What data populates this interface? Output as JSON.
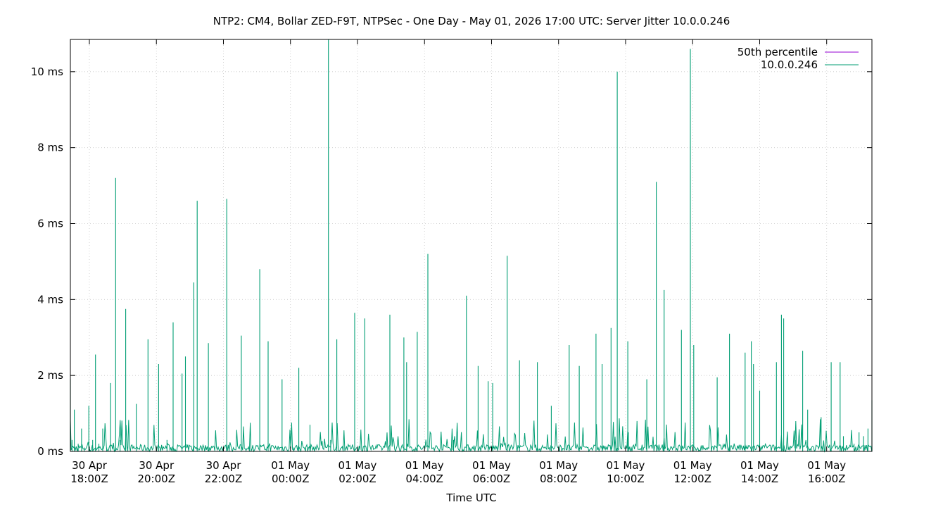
{
  "chart_data": {
    "type": "line",
    "title": "NTP2: CM4, Bollar ZED-F9T, NTPSec - One Day - May 01, 2026 17:00 UTC: Server Jitter 10.0.0.246",
    "xlabel": "Time UTC",
    "ylabel": "",
    "y_unit": "ms",
    "ylim": [
      0,
      10.85
    ],
    "xlim": [
      "2026-04-30T17:26Z",
      "2026-05-01T17:21Z"
    ],
    "yticks": [
      {
        "value": 0,
        "label": "0 ms"
      },
      {
        "value": 2,
        "label": "2 ms"
      },
      {
        "value": 4,
        "label": "4 ms"
      },
      {
        "value": 6,
        "label": "6 ms"
      },
      {
        "value": 8,
        "label": "8 ms"
      },
      {
        "value": 10,
        "label": "10 ms"
      }
    ],
    "xticks": [
      {
        "time": "2026-04-30T18:00Z",
        "line1": "30 Apr",
        "line2": "18:00Z"
      },
      {
        "time": "2026-04-30T20:00Z",
        "line1": "30 Apr",
        "line2": "20:00Z"
      },
      {
        "time": "2026-04-30T22:00Z",
        "line1": "30 Apr",
        "line2": "22:00Z"
      },
      {
        "time": "2026-05-01T00:00Z",
        "line1": "01 May",
        "line2": "00:00Z"
      },
      {
        "time": "2026-05-01T02:00Z",
        "line1": "01 May",
        "line2": "02:00Z"
      },
      {
        "time": "2026-05-01T04:00Z",
        "line1": "01 May",
        "line2": "04:00Z"
      },
      {
        "time": "2026-05-01T06:00Z",
        "line1": "01 May",
        "line2": "06:00Z"
      },
      {
        "time": "2026-05-01T08:00Z",
        "line1": "01 May",
        "line2": "08:00Z"
      },
      {
        "time": "2026-05-01T10:00Z",
        "line1": "01 May",
        "line2": "10:00Z"
      },
      {
        "time": "2026-05-01T12:00Z",
        "line1": "01 May",
        "line2": "12:00Z"
      },
      {
        "time": "2026-05-01T14:00Z",
        "line1": "01 May",
        "line2": "14:00Z"
      },
      {
        "time": "2026-05-01T16:00Z",
        "line1": "01 May",
        "line2": "16:00Z"
      }
    ],
    "grid": true,
    "legend_position": "top-right",
    "series": [
      {
        "name": "50th percentile",
        "color": "#9400d3",
        "values": [
          0.0
        ]
      },
      {
        "name": "10.0.0.246",
        "color": "#009e73",
        "x": [
          "2026-04-30T17:26Z",
          "2026-04-30T17:29Z",
          "2026-04-30T17:33Z",
          "2026-04-30T17:40Z",
          "2026-04-30T17:46Z",
          "2026-04-30T17:51Z",
          "2026-04-30T17:59Z",
          "2026-04-30T18:06Z",
          "2026-04-30T18:11Z",
          "2026-04-30T18:17Z",
          "2026-04-30T18:24Z",
          "2026-04-30T18:31Z",
          "2026-04-30T18:38Z",
          "2026-04-30T18:47Z",
          "2026-04-30T18:55Z",
          "2026-04-30T19:05Z",
          "2026-04-30T19:24Z",
          "2026-04-30T19:45Z",
          "2026-04-30T20:04Z",
          "2026-04-30T20:19Z",
          "2026-04-30T20:30Z",
          "2026-04-30T20:46Z",
          "2026-04-30T20:52Z",
          "2026-04-30T21:07Z",
          "2026-04-30T21:13Z",
          "2026-04-30T21:33Z",
          "2026-04-30T22:06Z",
          "2026-04-30T22:32Z",
          "2026-04-30T23:05Z",
          "2026-04-30T23:20Z",
          "2026-04-30T23:45Z",
          "2026-05-01T00:06Z",
          "2026-05-01T00:15Z",
          "2026-05-01T00:27Z",
          "2026-05-01T00:35Z",
          "2026-05-01T01:08Z",
          "2026-05-01T01:12Z",
          "2026-05-01T01:23Z",
          "2026-05-01T01:55Z",
          "2026-05-01T02:13Z",
          "2026-05-01T02:58Z",
          "2026-05-01T03:23Z",
          "2026-05-01T03:28Z",
          "2026-05-01T03:47Z",
          "2026-05-01T04:06Z",
          "2026-05-01T04:52Z",
          "2026-05-01T05:15Z",
          "2026-05-01T05:36Z",
          "2026-05-01T05:54Z",
          "2026-05-01T06:02Z",
          "2026-05-01T06:28Z",
          "2026-05-01T06:50Z",
          "2026-05-01T07:22Z",
          "2026-05-01T07:47Z",
          "2026-05-01T08:19Z",
          "2026-05-01T08:37Z",
          "2026-05-01T09:07Z",
          "2026-05-01T09:18Z",
          "2026-05-01T09:34Z",
          "2026-05-01T09:45Z",
          "2026-05-01T10:04Z",
          "2026-05-01T10:05Z",
          "2026-05-01T10:38Z",
          "2026-05-01T10:55Z",
          "2026-05-01T11:09Z",
          "2026-05-01T11:40Z",
          "2026-05-01T11:56Z",
          "2026-05-01T12:02Z",
          "2026-05-01T12:44Z",
          "2026-05-01T13:06Z",
          "2026-05-01T13:34Z",
          "2026-05-01T13:45Z",
          "2026-05-01T13:49Z",
          "2026-05-01T14:00Z",
          "2026-05-01T14:30Z",
          "2026-05-01T14:39Z",
          "2026-05-01T14:43Z",
          "2026-05-01T15:04Z",
          "2026-05-01T15:17Z",
          "2026-05-01T15:26Z",
          "2026-05-01T15:50Z",
          "2026-05-01T16:08Z",
          "2026-05-01T16:24Z",
          "2026-05-01T16:30Z",
          "2026-05-01T16:49Z",
          "2026-05-01T16:58Z",
          "2026-05-01T17:06Z",
          "2026-05-01T17:14Z",
          "2026-05-01T17:21Z"
        ],
        "values": [
          1.9,
          0.3,
          1.1,
          0.2,
          0.6,
          0.1,
          1.2,
          0.3,
          2.55,
          0.2,
          0.6,
          0.1,
          1.8,
          7.2,
          0.3,
          3.75,
          1.25,
          2.95,
          2.3,
          0.3,
          3.4,
          2.05,
          2.5,
          4.45,
          6.6,
          2.85,
          6.65,
          3.05,
          4.8,
          2.9,
          1.9,
          0.1,
          2.2,
          0.1,
          0.7,
          10.85,
          0.3,
          2.95,
          3.65,
          3.5,
          3.6,
          3.0,
          2.35,
          3.15,
          5.2,
          0.3,
          4.1,
          2.25,
          1.85,
          1.8,
          5.15,
          2.4,
          2.35,
          1.2,
          2.8,
          2.25,
          3.1,
          2.3,
          3.25,
          10.0,
          2.9,
          0.5,
          1.9,
          7.1,
          4.25,
          3.2,
          10.6,
          2.8,
          1.95,
          3.1,
          2.6,
          2.9,
          2.3,
          1.6,
          2.35,
          3.6,
          3.5,
          0.3,
          2.65,
          1.1,
          0.9,
          2.35,
          2.35,
          0.4,
          0.2,
          0.5,
          0.4,
          0.6,
          1.35
        ]
      }
    ]
  }
}
